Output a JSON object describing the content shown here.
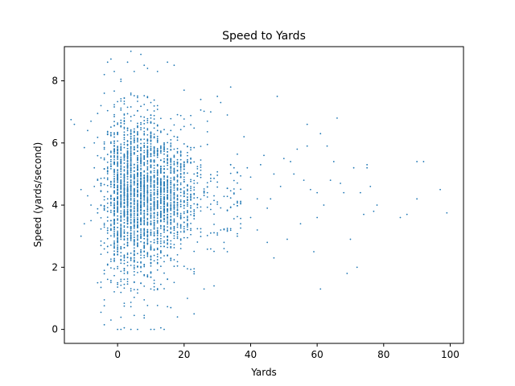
{
  "chart_data": {
    "type": "scatter",
    "title": "Speed to Yards",
    "xlabel": "Yards",
    "ylabel": "Speed (yards/second)",
    "xlim": [
      -16,
      104
    ],
    "ylim": [
      -0.45,
      9.1
    ],
    "xticks": [
      0,
      20,
      40,
      60,
      80,
      100
    ],
    "yticks": [
      0,
      2,
      4,
      6,
      8
    ],
    "grid": false,
    "marker_color": "#1f77b4",
    "series": [
      {
        "points": [
          [
            -14,
            6.75
          ],
          [
            -13,
            6.6
          ],
          [
            -11,
            3.0
          ],
          [
            -11,
            4.5
          ],
          [
            -10,
            3.4
          ],
          [
            -10,
            5.85
          ],
          [
            -9,
            4.3
          ],
          [
            -9,
            6.4
          ],
          [
            -8,
            4.0
          ],
          [
            -8,
            6.7
          ],
          [
            -8,
            3.5
          ],
          [
            -7,
            5.2
          ],
          [
            -7,
            6.0
          ],
          [
            -7,
            4.6
          ],
          [
            -6,
            1.5
          ],
          [
            -6,
            6.95
          ],
          [
            -6,
            4.8
          ],
          [
            -5,
            1.35
          ],
          [
            -5,
            0.55
          ],
          [
            -5,
            7.2
          ],
          [
            -4,
            0.15
          ],
          [
            -4,
            0.95
          ],
          [
            -4,
            7.6
          ],
          [
            -4,
            8.2
          ],
          [
            -3,
            8.6
          ],
          [
            -2,
            8.7
          ],
          [
            -2,
            0.3
          ],
          [
            -1,
            8.3
          ],
          [
            0,
            0.0
          ],
          [
            1,
            0.0
          ],
          [
            2,
            0.05
          ],
          [
            3,
            8.6
          ],
          [
            4,
            8.95
          ],
          [
            4,
            0.0
          ],
          [
            5,
            8.3
          ],
          [
            6,
            0.0
          ],
          [
            7,
            8.85
          ],
          [
            8,
            8.5
          ],
          [
            9,
            8.4
          ],
          [
            10,
            0.0
          ],
          [
            11,
            0.0
          ],
          [
            12,
            8.3
          ],
          [
            13,
            0.05
          ],
          [
            14,
            0.0
          ],
          [
            15,
            8.6
          ],
          [
            16,
            0.7
          ],
          [
            17,
            8.5
          ],
          [
            18,
            0.4
          ],
          [
            20,
            7.7
          ],
          [
            21,
            1.0
          ],
          [
            23,
            0.5
          ],
          [
            25,
            7.4
          ],
          [
            26,
            1.3
          ],
          [
            27,
            6.7
          ],
          [
            28,
            7.0
          ],
          [
            29,
            1.4
          ],
          [
            30,
            7.5
          ],
          [
            31,
            7.3
          ],
          [
            31,
            3.2
          ],
          [
            32,
            2.8
          ],
          [
            33,
            6.9
          ],
          [
            34,
            7.8
          ],
          [
            34,
            5.3
          ],
          [
            35,
            5.2
          ],
          [
            36,
            3.0
          ],
          [
            37,
            3.4
          ],
          [
            38,
            6.2
          ],
          [
            39,
            5.2
          ],
          [
            40,
            3.6
          ],
          [
            40,
            4.9
          ],
          [
            42,
            4.2
          ],
          [
            42,
            3.2
          ],
          [
            43,
            5.3
          ],
          [
            44,
            5.6
          ],
          [
            45,
            2.8
          ],
          [
            45,
            3.9
          ],
          [
            46,
            4.2
          ],
          [
            47,
            5.0
          ],
          [
            47,
            2.3
          ],
          [
            48,
            7.5
          ],
          [
            49,
            4.6
          ],
          [
            50,
            5.5
          ],
          [
            51,
            2.9
          ],
          [
            52,
            5.4
          ],
          [
            53,
            5.0
          ],
          [
            54,
            5.8
          ],
          [
            55,
            3.4
          ],
          [
            56,
            4.8
          ],
          [
            57,
            5.9
          ],
          [
            57,
            6.6
          ],
          [
            58,
            4.5
          ],
          [
            59,
            2.5
          ],
          [
            60,
            3.6
          ],
          [
            60,
            4.4
          ],
          [
            61,
            6.3
          ],
          [
            61,
            1.3
          ],
          [
            62,
            4.0
          ],
          [
            63,
            5.9
          ],
          [
            64,
            4.8
          ],
          [
            65,
            5.4
          ],
          [
            66,
            6.8
          ],
          [
            67,
            4.7
          ],
          [
            68,
            4.4
          ],
          [
            69,
            1.8
          ],
          [
            70,
            2.9
          ],
          [
            71,
            5.2
          ],
          [
            72,
            2.0
          ],
          [
            73,
            4.4
          ],
          [
            74,
            3.7
          ],
          [
            75,
            5.2
          ],
          [
            75,
            5.3
          ],
          [
            76,
            4.6
          ],
          [
            77,
            3.8
          ],
          [
            78,
            4.0
          ],
          [
            85,
            3.6
          ],
          [
            87,
            3.7
          ],
          [
            90,
            4.2
          ],
          [
            90,
            5.4
          ],
          [
            92,
            5.4
          ],
          [
            97,
            4.5
          ],
          [
            99,
            3.75
          ]
        ],
        "dense_band": {
          "x_range": [
            -6,
            25
          ],
          "y_range": [
            0.3,
            8.3
          ],
          "note": "thousands of integer-x points, densest at x=0..12 around y=3..6"
        }
      }
    ]
  }
}
